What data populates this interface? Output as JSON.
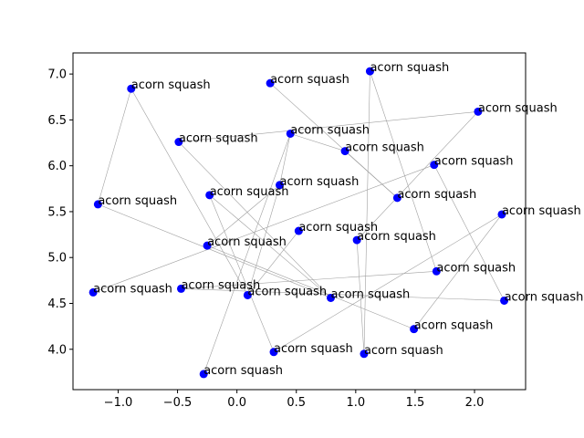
{
  "chart_data": {
    "type": "scatter",
    "title": "",
    "xlabel": "",
    "ylabel": "",
    "xlim": [
      -1.38,
      2.43
    ],
    "ylim": [
      3.56,
      7.23
    ],
    "xticks": [
      -1.0,
      -0.5,
      0.0,
      0.5,
      1.0,
      1.5,
      2.0
    ],
    "xtick_labels": [
      "−1.0",
      "−0.5",
      "0.0",
      "0.5",
      "1.0",
      "1.5",
      "2.0"
    ],
    "yticks": [
      4.0,
      4.5,
      5.0,
      5.5,
      6.0,
      6.5,
      7.0
    ],
    "ytick_labels": [
      "4.0",
      "4.5",
      "5.0",
      "5.5",
      "6.0",
      "6.5",
      "7.0"
    ],
    "grid": false,
    "legend": "none",
    "point_color": "#0000ff",
    "edge_color": "#a0a0a0",
    "points": [
      {
        "x": 1.12,
        "y": 7.03,
        "label": "acorn squash"
      },
      {
        "x": -0.89,
        "y": 6.84,
        "label": "acorn squash"
      },
      {
        "x": 0.28,
        "y": 6.9,
        "label": "acorn squash"
      },
      {
        "x": 2.03,
        "y": 6.59,
        "label": "acorn squash"
      },
      {
        "x": 0.45,
        "y": 6.35,
        "label": "acorn squash"
      },
      {
        "x": -0.49,
        "y": 6.26,
        "label": "acorn squash"
      },
      {
        "x": 0.91,
        "y": 6.16,
        "label": "acorn squash"
      },
      {
        "x": 1.66,
        "y": 6.01,
        "label": "acorn squash"
      },
      {
        "x": 0.36,
        "y": 5.79,
        "label": "acorn squash"
      },
      {
        "x": -0.23,
        "y": 5.68,
        "label": "acorn squash"
      },
      {
        "x": 1.35,
        "y": 5.65,
        "label": "acorn squash"
      },
      {
        "x": -1.17,
        "y": 5.58,
        "label": "acorn squash"
      },
      {
        "x": 2.23,
        "y": 5.47,
        "label": "acorn squash"
      },
      {
        "x": 0.52,
        "y": 5.29,
        "label": "acorn squash"
      },
      {
        "x": 1.01,
        "y": 5.19,
        "label": "acorn squash"
      },
      {
        "x": -0.25,
        "y": 5.13,
        "label": "acorn squash"
      },
      {
        "x": 1.68,
        "y": 4.85,
        "label": "acorn squash"
      },
      {
        "x": -1.21,
        "y": 4.62,
        "label": "acorn squash"
      },
      {
        "x": -0.47,
        "y": 4.66,
        "label": "acorn squash"
      },
      {
        "x": 0.09,
        "y": 4.59,
        "label": "acorn squash"
      },
      {
        "x": 0.79,
        "y": 4.56,
        "label": "acorn squash"
      },
      {
        "x": 2.25,
        "y": 4.53,
        "label": "acorn squash"
      },
      {
        "x": 1.49,
        "y": 4.22,
        "label": "acorn squash"
      },
      {
        "x": 0.31,
        "y": 3.97,
        "label": "acorn squash"
      },
      {
        "x": 1.07,
        "y": 3.95,
        "label": "acorn squash"
      },
      {
        "x": -0.28,
        "y": 3.73,
        "label": "acorn squash"
      }
    ],
    "edges": [
      [
        0,
        16
      ],
      [
        0,
        24
      ],
      [
        1,
        11
      ],
      [
        1,
        19
      ],
      [
        2,
        10
      ],
      [
        3,
        5
      ],
      [
        3,
        14
      ],
      [
        4,
        8
      ],
      [
        4,
        6
      ],
      [
        4,
        25
      ],
      [
        5,
        20
      ],
      [
        6,
        10
      ],
      [
        7,
        17
      ],
      [
        7,
        21
      ],
      [
        8,
        15
      ],
      [
        9,
        20
      ],
      [
        9,
        23
      ],
      [
        11,
        20
      ],
      [
        12,
        22
      ],
      [
        12,
        23
      ],
      [
        13,
        19
      ],
      [
        14,
        24
      ],
      [
        15,
        22
      ],
      [
        16,
        18
      ],
      [
        18,
        21
      ],
      [
        19,
        8
      ]
    ]
  }
}
